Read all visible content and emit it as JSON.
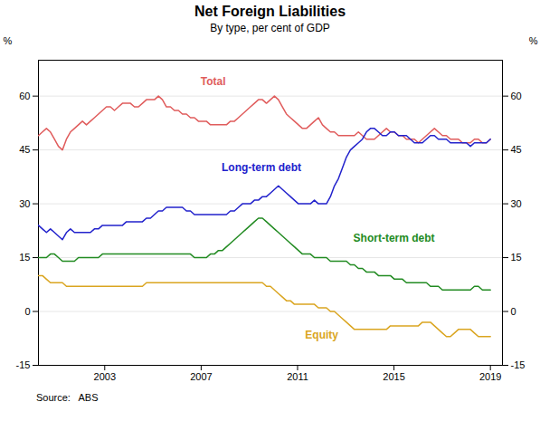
{
  "chart_data": {
    "type": "line",
    "title": "Net Foreign Liabilities",
    "subtitle": "By type, per cent of GDP",
    "ylabel": "%",
    "y2label": "%",
    "source": "Source:   ABS",
    "x": [
      2000.25,
      2000.4159,
      2000.5819,
      2000.7478,
      2000.9137,
      2001.0796,
      2001.2456,
      2001.4115,
      2001.5774,
      2001.7434,
      2001.9093,
      2002.0752,
      2002.2412,
      2002.4071,
      2002.573,
      2002.7389,
      2002.9049,
      2003.0708,
      2003.2367,
      2003.4027,
      2003.5686,
      2003.7345,
      2003.9004,
      2004.0664,
      2004.2323,
      2004.3982,
      2004.5642,
      2004.7301,
      2004.896,
      2005.0619,
      2005.2279,
      2005.3938,
      2005.5597,
      2005.7257,
      2005.8916,
      2006.0575,
      2006.2235,
      2006.3894,
      2006.5553,
      2006.7212,
      2006.8872,
      2007.0531,
      2007.219,
      2007.385,
      2007.5509,
      2007.7168,
      2007.8827,
      2008.0487,
      2008.2146,
      2008.3805,
      2008.5465,
      2008.7124,
      2008.8783,
      2009.0442,
      2009.2102,
      2009.3761,
      2009.542,
      2009.708,
      2009.8739,
      2010.0398,
      2010.2058,
      2010.3717,
      2010.5376,
      2010.7035,
      2010.8695,
      2011.0354,
      2011.2013,
      2011.3673,
      2011.5332,
      2011.6991,
      2011.865,
      2012.031,
      2012.1969,
      2012.3628,
      2012.5288,
      2012.6947,
      2012.8606,
      2013.0265,
      2013.1925,
      2013.3584,
      2013.5243,
      2013.6903,
      2013.8562,
      2014.0221,
      2014.1881,
      2014.354,
      2014.5199,
      2014.6858,
      2014.8518,
      2015.0177,
      2015.1836,
      2015.3496,
      2015.5155,
      2015.6814,
      2015.8473,
      2016.0133,
      2016.1792,
      2016.3451,
      2016.5111,
      2016.677,
      2016.8429,
      2017.0088,
      2017.1748,
      2017.3407,
      2017.5066,
      2017.6726,
      2017.8385,
      2018.0044,
      2018.1704,
      2018.3363,
      2018.5022,
      2018.6681,
      2018.8341,
      2019.0
    ],
    "xlim": [
      2000.25,
      2019.5
    ],
    "xticks": [
      2003,
      2007,
      2011,
      2015,
      2019
    ],
    "ylim": [
      -15,
      70
    ],
    "yticks": [
      -15,
      0,
      15,
      30,
      45,
      60
    ],
    "y2lim": [
      -15,
      70
    ],
    "y2ticks": [
      -15,
      0,
      15,
      30,
      45,
      60
    ],
    "grid": true,
    "series": [
      {
        "color": "#e05c5c",
        "values": [
          49,
          50,
          51,
          50,
          48,
          46,
          45,
          48,
          50,
          51,
          52,
          53,
          52,
          53,
          54,
          55,
          56,
          57,
          57,
          56,
          57,
          58,
          58,
          58,
          57,
          57,
          58,
          59,
          59,
          59,
          60,
          59,
          57,
          57,
          56,
          56,
          55,
          55,
          54,
          54,
          53,
          53,
          53,
          52,
          52,
          52,
          52,
          52,
          53,
          53,
          54,
          55,
          56,
          57,
          58,
          59,
          59,
          58,
          59,
          60,
          59,
          57,
          55,
          54,
          53,
          52,
          51,
          51,
          52,
          53,
          54,
          52,
          51,
          50,
          50,
          49,
          49,
          49,
          49,
          49,
          50,
          49,
          48,
          48,
          48,
          49,
          50,
          51,
          50,
          50,
          49,
          49,
          48,
          48,
          48,
          47,
          48,
          49,
          50,
          51,
          50,
          49,
          49,
          48,
          48,
          48,
          47,
          47,
          47,
          48,
          48,
          47,
          47,
          48
        ]
      },
      {
        "color": "#2222cc",
        "values": [
          24,
          23,
          22,
          23,
          22,
          21,
          20,
          22,
          23,
          22,
          22,
          22,
          22,
          22,
          23,
          23,
          24,
          24,
          24,
          24,
          24,
          24,
          25,
          25,
          25,
          25,
          25,
          26,
          26,
          27,
          28,
          28,
          29,
          29,
          29,
          29,
          29,
          28,
          28,
          27,
          27,
          27,
          27,
          27,
          27,
          27,
          27,
          27,
          28,
          28,
          29,
          30,
          30,
          30,
          31,
          31,
          32,
          32,
          33,
          34,
          35,
          34,
          33,
          32,
          31,
          30,
          30,
          30,
          30,
          31,
          30,
          30,
          30,
          32,
          35,
          37,
          40,
          43,
          45,
          46,
          47,
          48,
          50,
          51,
          51,
          50,
          49,
          49,
          50,
          50,
          49,
          49,
          49,
          48,
          47,
          47,
          47,
          48,
          49,
          49,
          48,
          48,
          48,
          47,
          47,
          47,
          47,
          47,
          46,
          47,
          47,
          47,
          47,
          48
        ]
      },
      {
        "color": "#228B22",
        "values": [
          15,
          15,
          15,
          16,
          16,
          15,
          14,
          14,
          14,
          14,
          15,
          15,
          15,
          15,
          15,
          15,
          16,
          16,
          16,
          16,
          16,
          16,
          16,
          16,
          16,
          16,
          16,
          16,
          16,
          16,
          16,
          16,
          16,
          16,
          16,
          16,
          16,
          16,
          16,
          15,
          15,
          15,
          15,
          16,
          16,
          17,
          17,
          18,
          19,
          20,
          21,
          22,
          23,
          24,
          25,
          26,
          26,
          25,
          24,
          23,
          22,
          21,
          20,
          19,
          18,
          17,
          16,
          16,
          16,
          15,
          15,
          15,
          15,
          14,
          14,
          14,
          14,
          14,
          13,
          13,
          12,
          12,
          11,
          11,
          11,
          10,
          10,
          10,
          10,
          9,
          9,
          9,
          8,
          8,
          8,
          8,
          8,
          8,
          7,
          7,
          7,
          6,
          6,
          6,
          6,
          6,
          6,
          6,
          6,
          7,
          7,
          6,
          6,
          6
        ]
      },
      {
        "color": "#DAA520",
        "values": [
          10,
          10,
          9,
          8,
          8,
          8,
          8,
          7,
          7,
          7,
          7,
          7,
          7,
          7,
          7,
          7,
          7,
          7,
          7,
          7,
          7,
          7,
          7,
          7,
          7,
          7,
          7,
          8,
          8,
          8,
          8,
          8,
          8,
          8,
          8,
          8,
          8,
          8,
          8,
          8,
          8,
          8,
          8,
          8,
          8,
          8,
          8,
          8,
          8,
          8,
          8,
          8,
          8,
          8,
          8,
          8,
          8,
          7,
          7,
          6,
          5,
          4,
          3,
          3,
          2,
          2,
          2,
          2,
          2,
          2,
          1,
          1,
          1,
          0,
          0,
          -1,
          -2,
          -3,
          -4,
          -5,
          -5,
          -5,
          -5,
          -5,
          -5,
          -5,
          -5,
          -5,
          -4,
          -4,
          -4,
          -4,
          -4,
          -4,
          -4,
          -4,
          -3,
          -3,
          -3,
          -4,
          -5,
          -6,
          -7,
          -7,
          -6,
          -5,
          -5,
          -5,
          -5,
          -6,
          -7,
          -7,
          -7,
          -7
        ]
      }
    ],
    "annotations": [
      {
        "x": 2007.5,
        "y": 63.0,
        "text": "Total",
        "color": "#e05c5c"
      },
      {
        "x": 2009.5,
        "y": 39.0,
        "text": "Long-term debt",
        "color": "#2222cc"
      },
      {
        "x": 2015.0,
        "y": 19.5,
        "text": "Short-term debt",
        "color": "#228B22"
      },
      {
        "x": 2012.0,
        "y": -7.5,
        "text": "Equity",
        "color": "#DAA520"
      }
    ]
  }
}
